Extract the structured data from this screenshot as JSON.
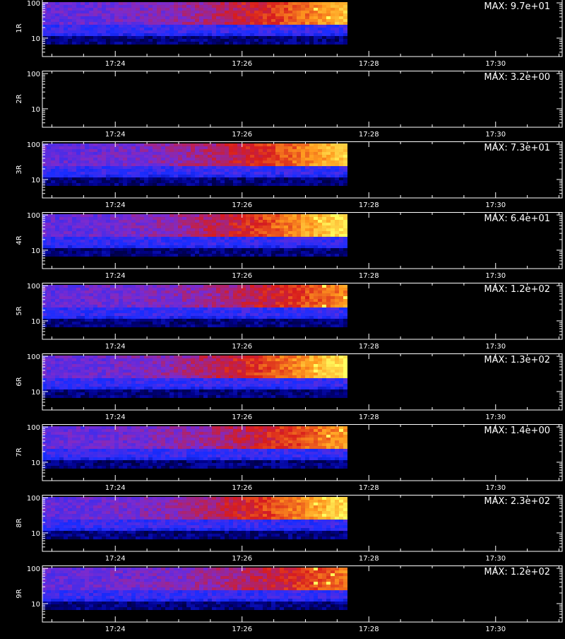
{
  "chart_data": {
    "type": "heatmap",
    "description_units": "counts vs time (x) and energy (y, log)",
    "x_ticks": [
      "17:24",
      "17:26",
      "17:28",
      "17:30"
    ],
    "x_range_minutes": [
      0,
      8.2
    ],
    "x_tick_minutes": [
      1.15,
      3.15,
      5.15,
      7.15
    ],
    "data_end_minutes": 4.75,
    "y_scale": "log",
    "y_range": [
      3,
      110
    ],
    "y_ticks": [
      "100",
      "10"
    ],
    "colorscale": [
      "#000000",
      "#00008c",
      "#1a2dff",
      "#7a2bd0",
      "#d81d1d",
      "#ff9a1f",
      "#ffff60"
    ],
    "panels": [
      {
        "label": "1R",
        "max_text": "MAX: 9.7e+01",
        "intensity": 0.8,
        "empty": false
      },
      {
        "label": "2R",
        "max_text": "MAX: 3.2e+00",
        "intensity": 0.0,
        "empty": true
      },
      {
        "label": "3R",
        "max_text": "MAX: 7.3e+01",
        "intensity": 0.85,
        "empty": false
      },
      {
        "label": "4R",
        "max_text": "MAX: 6.4e+01",
        "intensity": 0.95,
        "empty": false
      },
      {
        "label": "5R",
        "max_text": "MAX: 1.2e+02",
        "intensity": 0.65,
        "empty": false
      },
      {
        "label": "6R",
        "max_text": "MAX: 1.3e+02",
        "intensity": 0.95,
        "empty": false
      },
      {
        "label": "7R",
        "max_text": "MAX: 1.4e+00",
        "intensity": 0.7,
        "empty": false
      },
      {
        "label": "8R",
        "max_text": "MAX: 2.3e+02",
        "intensity": 0.9,
        "empty": false
      },
      {
        "label": "9R",
        "max_text": "MAX: 1.2e+02",
        "intensity": 0.6,
        "empty": false
      }
    ]
  }
}
